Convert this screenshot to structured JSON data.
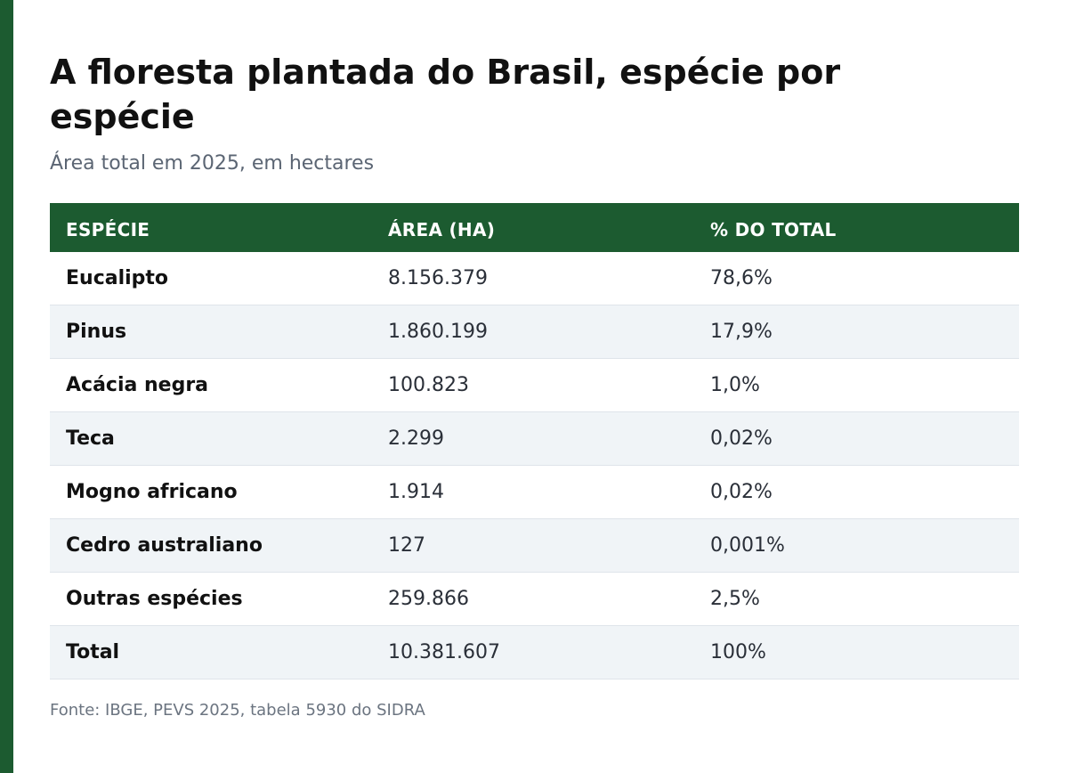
{
  "header": {
    "title": "A floresta plantada do Brasil, espécie por espécie",
    "subtitle": "Área total em 2025, em hectares"
  },
  "table": {
    "columns": [
      "Espécie",
      "Área (ha)",
      "% do total"
    ],
    "rows": [
      [
        "Eucalipto",
        "8.156.379",
        "78,6%"
      ],
      [
        "Pinus",
        "1.860.199",
        "17,9%"
      ],
      [
        "Acácia negra",
        "100.823",
        "1,0%"
      ],
      [
        "Teca",
        "2.299",
        "0,02%"
      ],
      [
        "Mogno africano",
        "1.914",
        "0,02%"
      ],
      [
        "Cedro australiano",
        "127",
        "0,001%"
      ],
      [
        "Outras espécies",
        "259.866",
        "2,5%"
      ],
      [
        "Total",
        "10.381.607",
        "100%"
      ]
    ]
  },
  "footer": {
    "source": "Fonte: IBGE, PEVS 2025, tabela 5930 do SIDRA"
  },
  "colors": {
    "accent": "#1c5b30",
    "stripe": "#f0f4f7",
    "title_text": "#111111",
    "muted_text": "#5b6573"
  }
}
